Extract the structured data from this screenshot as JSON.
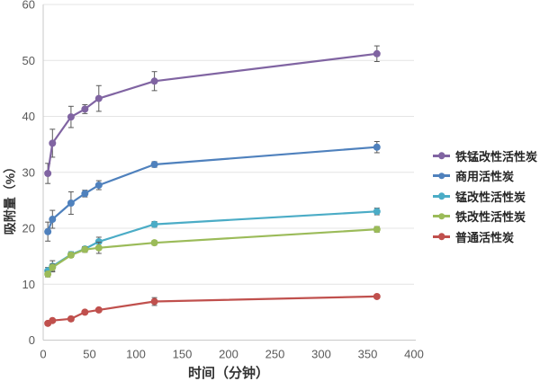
{
  "chart_data": {
    "type": "line",
    "title": "",
    "xlabel": "时间（分钟）",
    "ylabel": "吸附量（%）",
    "xlim": [
      0,
      400
    ],
    "ylim": [
      0,
      60
    ],
    "x_ticks": [
      0,
      50,
      100,
      150,
      200,
      250,
      300,
      350,
      400
    ],
    "y_ticks": [
      0,
      10,
      20,
      30,
      40,
      50,
      60
    ],
    "grid": "horizontal",
    "legend_position": "right",
    "error_bars": true,
    "x": [
      5,
      10,
      30,
      45,
      60,
      120,
      360
    ],
    "series": [
      {
        "name": "铁锰改性活性炭",
        "color": "#8064A2",
        "values": [
          29.8,
          35.2,
          39.9,
          41.3,
          43.2,
          46.3,
          51.2
        ],
        "errors": [
          1.8,
          2.5,
          1.9,
          0.8,
          2.3,
          1.7,
          1.4
        ]
      },
      {
        "name": "商用活性炭",
        "color": "#4F81BD",
        "values": [
          19.4,
          21.6,
          24.5,
          26.2,
          27.7,
          31.4,
          34.5
        ],
        "errors": [
          1.7,
          1.6,
          2.0,
          0.6,
          0.8,
          0.5,
          1.0
        ]
      },
      {
        "name": "锰改性活性炭",
        "color": "#4BACC6",
        "values": [
          12.4,
          13.2,
          15.3,
          16.3,
          17.6,
          20.7,
          23.0
        ],
        "errors": [
          0.6,
          1.0,
          0.5,
          0.4,
          0.8,
          0.5,
          0.6
        ]
      },
      {
        "name": "铁改性活性炭",
        "color": "#9BBB59",
        "values": [
          11.8,
          13.0,
          15.2,
          16.2,
          16.5,
          17.4,
          19.8
        ],
        "errors": [
          0.5,
          0.6,
          0.4,
          0.5,
          1.0,
          0.4,
          0.5
        ]
      },
      {
        "name": "普通活性炭",
        "color": "#C0504D",
        "values": [
          3.0,
          3.5,
          3.8,
          5.0,
          5.4,
          6.9,
          7.8
        ],
        "errors": [
          0.3,
          0.3,
          0.4,
          0.3,
          0.3,
          0.7,
          0.3
        ]
      }
    ],
    "style": {
      "gridline_color": "#E4E4E4",
      "axis_line_color": "#C9C9C9",
      "tick_label_color": "#595959",
      "error_bar_color": "#595959"
    }
  }
}
